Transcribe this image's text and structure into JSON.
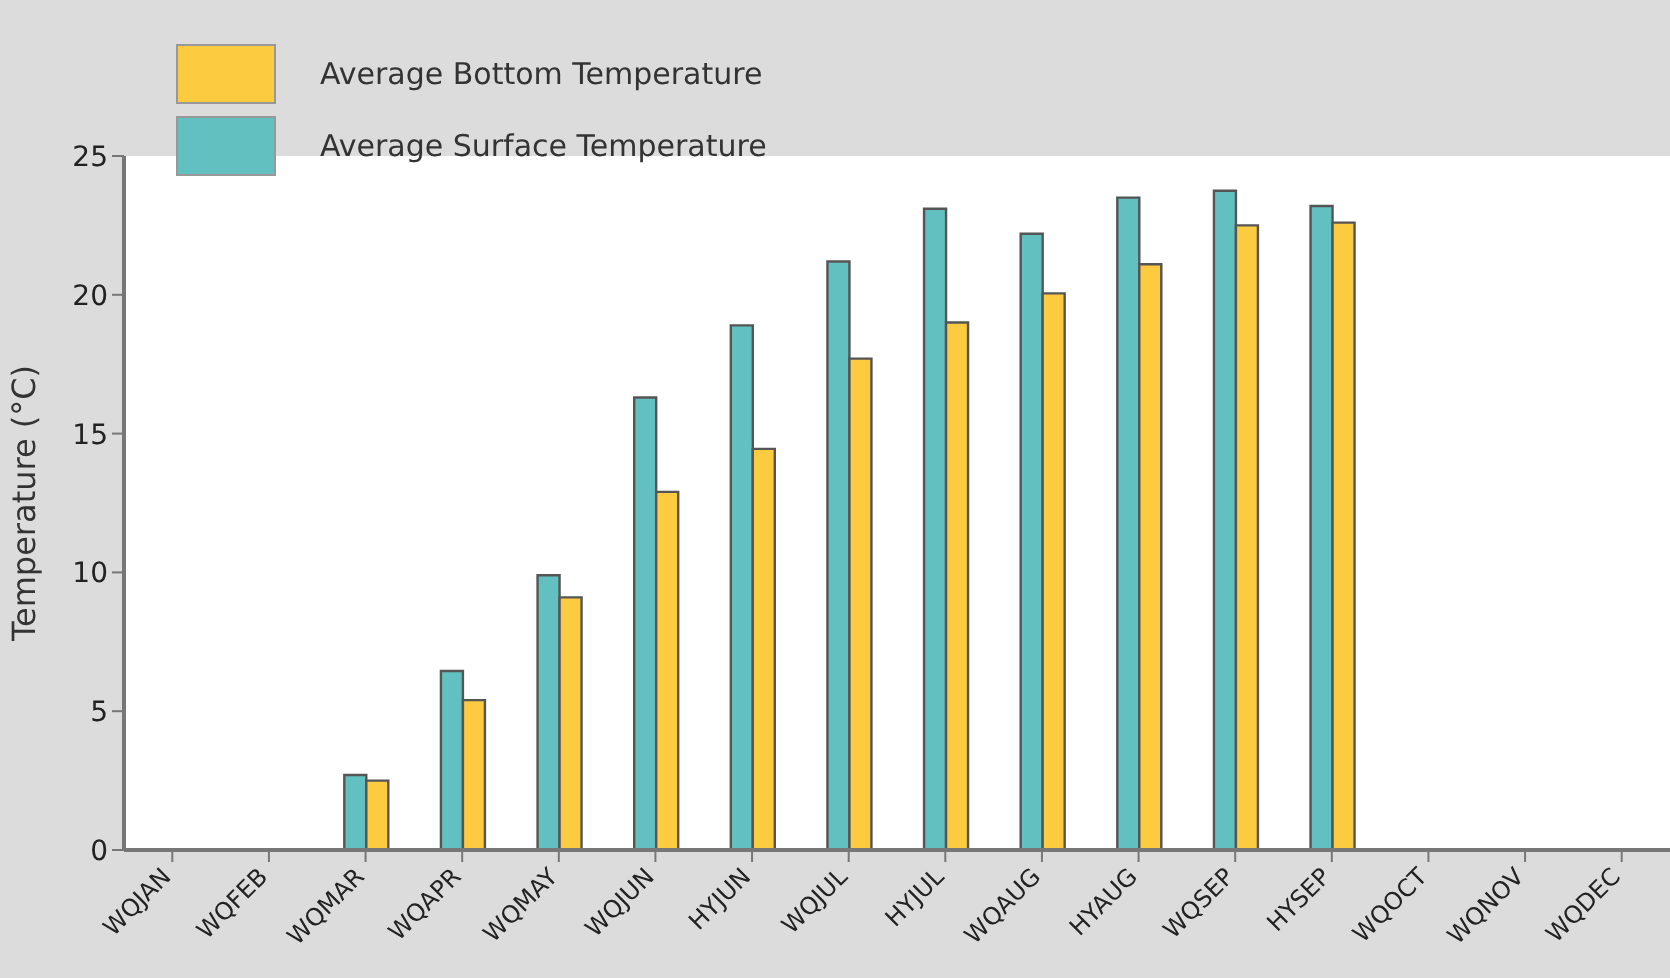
{
  "chart_data": {
    "type": "bar",
    "ylabel": "Temperature (°C)",
    "categories": [
      "WQJAN",
      "WQFEB",
      "WQMAR",
      "WQAPR",
      "WQMAY",
      "WQJUN",
      "HYJUN",
      "WQJUL",
      "HYJUL",
      "WQAUG",
      "HYAUG",
      "WQSEP",
      "HYSEP",
      "WQOCT",
      "WQNOV",
      "WQDEC"
    ],
    "series": [
      {
        "name": "Average Bottom Temperature",
        "color": "#fccb40",
        "values": [
          null,
          null,
          2.5,
          5.4,
          9.1,
          12.9,
          14.45,
          17.7,
          19.0,
          20.05,
          21.1,
          22.5,
          22.6,
          null,
          null,
          null
        ]
      },
      {
        "name": "Average Surface Temperature",
        "color": "#62c1c0",
        "values": [
          null,
          null,
          2.7,
          6.45,
          9.9,
          16.3,
          18.9,
          21.2,
          23.1,
          22.2,
          23.5,
          23.75,
          23.2,
          null,
          null,
          null
        ]
      }
    ],
    "ylim": [
      0,
      25
    ],
    "yticks": [
      0,
      5,
      10,
      15,
      20,
      25
    ],
    "grid": false,
    "legend": "top left"
  }
}
